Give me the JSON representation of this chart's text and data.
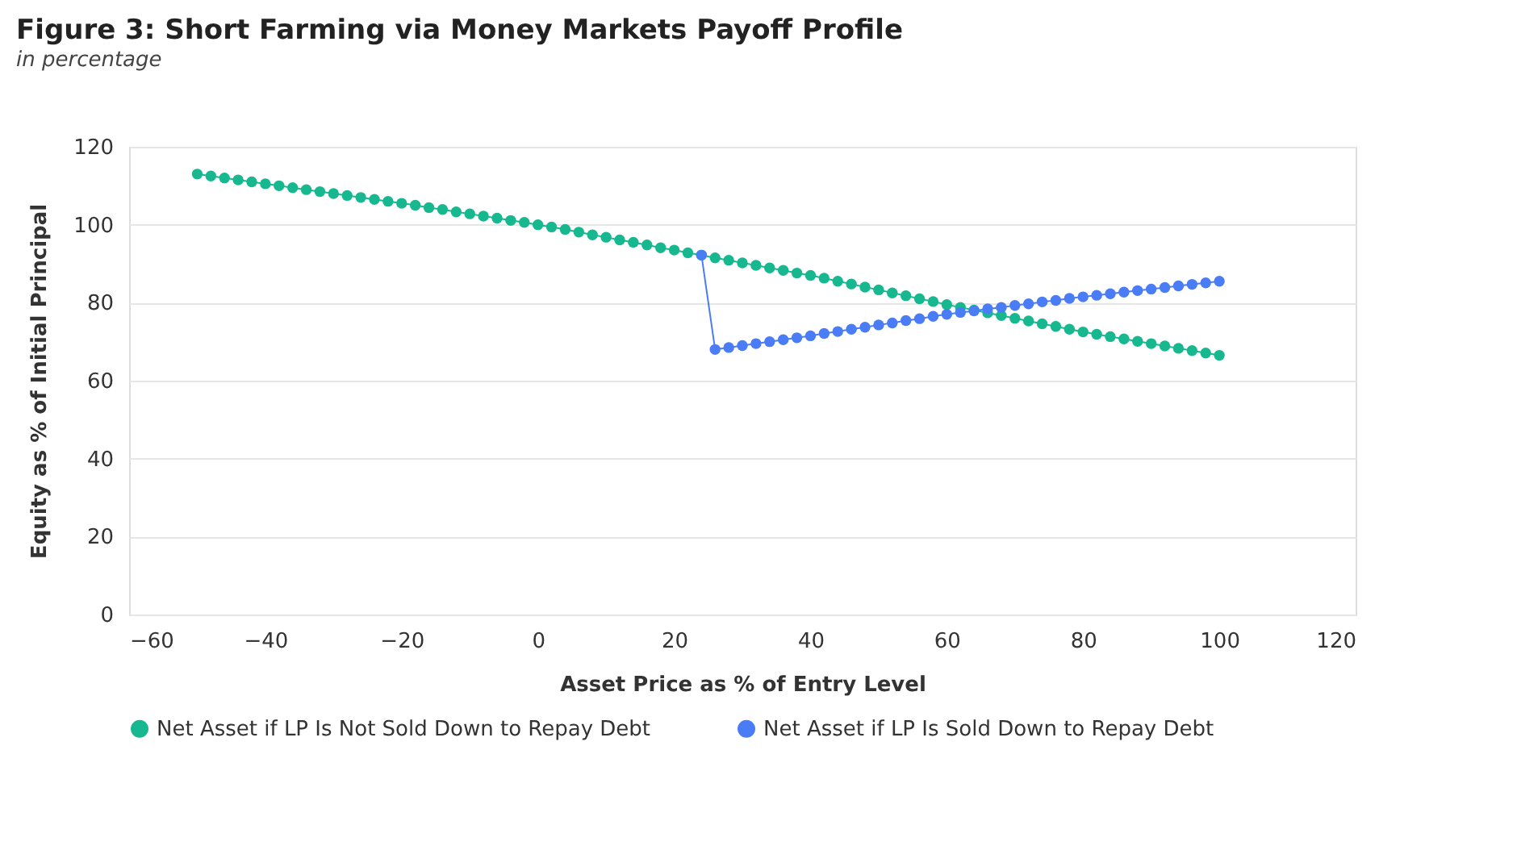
{
  "chart_data": {
    "type": "line",
    "title": "Figure 3: Short Farming via Money Markets Payoff Profile",
    "subtitle": "in percentage",
    "xlabel": "Asset Price as % of Entry Level",
    "ylabel": "Equity as % of Initial Principal",
    "xlim": [
      -60,
      120
    ],
    "xticks": [
      -60,
      -40,
      -20,
      0,
      20,
      40,
      60,
      80,
      100,
      120
    ],
    "ylim": [
      0,
      120
    ],
    "yticks": [
      0,
      20,
      40,
      60,
      80,
      100,
      120
    ],
    "grid": "y",
    "legend": "bottom",
    "marker": "circle",
    "line_style": "solid",
    "series": [
      {
        "name": "Net Asset if LP Is Not Sold Down to Repay Debt",
        "color": "#17b88f",
        "x": [
          -50,
          -48,
          -46,
          -44,
          -42,
          -40,
          -38,
          -36,
          -34,
          -32,
          -30,
          -28,
          -26,
          -24,
          -22,
          -20,
          -18,
          -16,
          -14,
          -12,
          -10,
          -8,
          -6,
          -4,
          -2,
          0,
          2,
          4,
          6,
          8,
          10,
          12,
          14,
          16,
          18,
          20,
          22,
          24,
          26,
          28,
          30,
          32,
          34,
          36,
          38,
          40,
          42,
          44,
          46,
          48,
          50,
          52,
          54,
          56,
          58,
          60,
          62,
          64,
          66,
          68,
          70,
          72,
          74,
          76,
          78,
          80,
          82,
          84,
          86,
          88,
          90,
          92,
          94,
          96,
          98,
          100
        ],
        "values": [
          113.0,
          112.5,
          112.0,
          111.5,
          111.0,
          110.5,
          110.0,
          109.5,
          109.0,
          108.5,
          108.0,
          107.5,
          107.0,
          106.5,
          106.0,
          105.5,
          105.0,
          104.4,
          103.9,
          103.3,
          102.8,
          102.2,
          101.7,
          101.1,
          100.6,
          100.0,
          99.4,
          98.8,
          98.1,
          97.4,
          96.8,
          96.1,
          95.5,
          94.8,
          94.1,
          93.5,
          92.8,
          92.2,
          91.5,
          90.9,
          90.2,
          89.6,
          88.9,
          88.3,
          87.6,
          87.0,
          86.3,
          85.5,
          84.8,
          84.0,
          83.3,
          82.5,
          81.8,
          81.0,
          80.3,
          79.5,
          78.8,
          78.1,
          77.4,
          76.7,
          76.0,
          75.3,
          74.6,
          73.9,
          73.2,
          72.5,
          71.9,
          71.3,
          70.7,
          70.1,
          69.5,
          68.9,
          68.3,
          67.7,
          67.1,
          66.5
        ]
      },
      {
        "name": "Net Asset if LP Is Sold Down to Repay Debt",
        "color": "#4a7cf5",
        "x": [
          24,
          26,
          28,
          30,
          32,
          34,
          36,
          38,
          40,
          42,
          44,
          46,
          48,
          50,
          52,
          54,
          56,
          58,
          60,
          62,
          64,
          66,
          68,
          70,
          72,
          74,
          76,
          78,
          80,
          82,
          84,
          86,
          88,
          90,
          92,
          94,
          96,
          98,
          100
        ],
        "values": [
          92.2,
          68.0,
          68.5,
          69.0,
          69.5,
          70.0,
          70.5,
          71.0,
          71.5,
          72.1,
          72.6,
          73.2,
          73.7,
          74.3,
          74.8,
          75.4,
          75.9,
          76.5,
          77.0,
          77.5,
          77.9,
          78.4,
          78.8,
          79.3,
          79.7,
          80.2,
          80.6,
          81.1,
          81.5,
          81.9,
          82.3,
          82.7,
          83.1,
          83.5,
          83.9,
          84.3,
          84.7,
          85.1,
          85.5
        ]
      }
    ]
  }
}
